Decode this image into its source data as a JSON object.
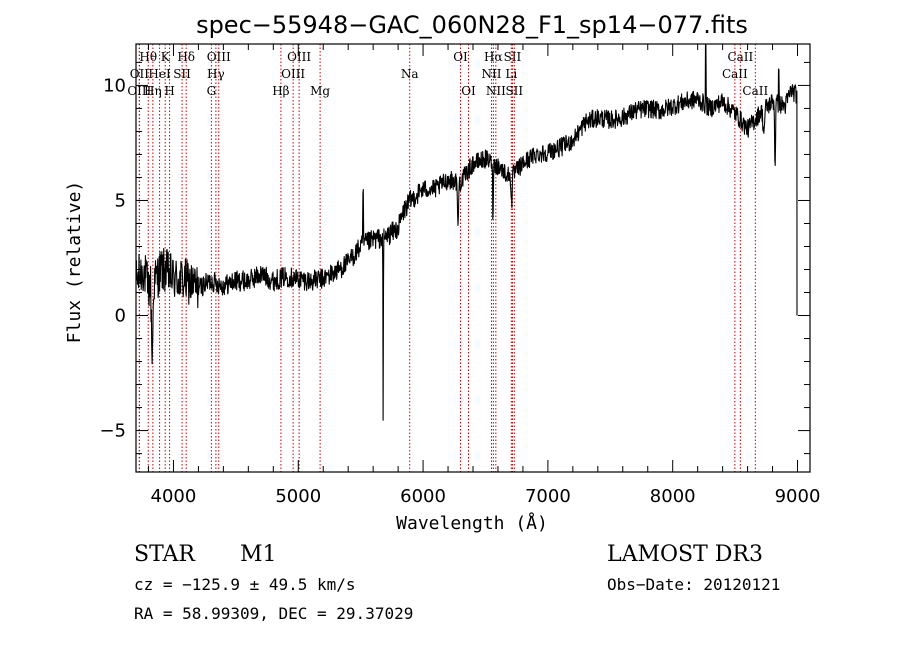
{
  "chart_data": {
    "type": "line",
    "title": "spec−55948−GAC_060N28_F1_sp14−077.fits",
    "xlabel": "Wavelength (Å)",
    "ylabel": "Flux (relative)",
    "xlim": [
      3700,
      9100
    ],
    "ylim": [
      -6.8,
      11.8
    ],
    "x_ticks": [
      {
        "value": 4000,
        "label": "4000"
      },
      {
        "value": 5000,
        "label": "5000"
      },
      {
        "value": 6000,
        "label": "6000"
      },
      {
        "value": 7000,
        "label": "7000"
      },
      {
        "value": 8000,
        "label": "8000"
      },
      {
        "value": 9000,
        "label": "9000"
      }
    ],
    "y_ticks": [
      {
        "value": -5,
        "label": "−5"
      },
      {
        "value": 0,
        "label": "0"
      },
      {
        "value": 5,
        "label": "5"
      },
      {
        "value": 10,
        "label": "10"
      }
    ],
    "spectrum_anchors": [
      [
        3700,
        1.5
      ],
      [
        3760,
        2.0
      ],
      [
        3800,
        1.2
      ],
      [
        3850,
        1.5
      ],
      [
        3900,
        2.0
      ],
      [
        3950,
        1.9
      ],
      [
        4000,
        1.6
      ],
      [
        4100,
        1.5
      ],
      [
        4200,
        1.2
      ],
      [
        4300,
        1.5
      ],
      [
        4400,
        1.3
      ],
      [
        4500,
        1.5
      ],
      [
        4600,
        1.5
      ],
      [
        4700,
        1.8
      ],
      [
        4800,
        1.5
      ],
      [
        4900,
        1.7
      ],
      [
        5000,
        1.6
      ],
      [
        5100,
        1.5
      ],
      [
        5200,
        1.6
      ],
      [
        5300,
        1.9
      ],
      [
        5400,
        2.3
      ],
      [
        5500,
        3.0
      ],
      [
        5600,
        3.3
      ],
      [
        5700,
        3.4
      ],
      [
        5800,
        3.8
      ],
      [
        5850,
        4.6
      ],
      [
        5900,
        5.0
      ],
      [
        6000,
        5.5
      ],
      [
        6100,
        5.5
      ],
      [
        6200,
        5.9
      ],
      [
        6300,
        5.8
      ],
      [
        6400,
        6.6
      ],
      [
        6500,
        6.8
      ],
      [
        6600,
        6.5
      ],
      [
        6700,
        6.0
      ],
      [
        6800,
        6.6
      ],
      [
        6900,
        7.0
      ],
      [
        7000,
        7.1
      ],
      [
        7100,
        7.3
      ],
      [
        7200,
        7.6
      ],
      [
        7300,
        8.4
      ],
      [
        7400,
        8.6
      ],
      [
        7500,
        8.5
      ],
      [
        7600,
        8.6
      ],
      [
        7700,
        8.9
      ],
      [
        7800,
        9.0
      ],
      [
        7900,
        8.9
      ],
      [
        8000,
        9.1
      ],
      [
        8100,
        9.3
      ],
      [
        8200,
        9.4
      ],
      [
        8300,
        9.0
      ],
      [
        8400,
        9.3
      ],
      [
        8500,
        8.8
      ],
      [
        8600,
        8.1
      ],
      [
        8700,
        8.8
      ],
      [
        8800,
        9.3
      ],
      [
        8900,
        9.1
      ],
      [
        8950,
        9.8
      ],
      [
        8990,
        9.6
      ]
    ],
    "spectrum_features": [
      {
        "x": 3830,
        "depth": 3.4,
        "width": 12
      },
      {
        "x": 5680,
        "depth": 8.0,
        "width": 3
      },
      {
        "x": 6280,
        "depth": 2.2,
        "width": 8
      },
      {
        "x": 6560,
        "depth": 2.5,
        "width": 5
      },
      {
        "x": 6710,
        "depth": 1.3,
        "width": 8
      },
      {
        "x": 8730,
        "depth": 1.0,
        "width": 14
      },
      {
        "x": 8820,
        "depth": 3.2,
        "width": 6
      }
    ],
    "spectrum_spikes": [
      {
        "x": 5520,
        "height": 2.3
      },
      {
        "x": 8265,
        "height": 3.5
      },
      {
        "x": 8850,
        "height": 1.8
      }
    ],
    "spectrum_end": {
      "x": 8996,
      "drop_to": 0.0
    },
    "noise_amplitude": 0.45,
    "line_markers": [
      {
        "x": 3798,
        "label": "Hθ",
        "row": 0
      },
      {
        "x": 3727,
        "label": "OII",
        "row": 1
      },
      {
        "x": 3727,
        "label": "OIII",
        "row": 2
      },
      {
        "x": 3835,
        "label": "Hη",
        "row": 2
      },
      {
        "x": 3889,
        "label": "HeI",
        "row": 1
      },
      {
        "x": 3934,
        "label": "K",
        "row": 0
      },
      {
        "x": 3969,
        "label": "H",
        "row": 2
      },
      {
        "x": 4069,
        "label": "SII",
        "row": 1
      },
      {
        "x": 4102,
        "label": "Hδ",
        "row": 0
      },
      {
        "x": 4304,
        "label": "G",
        "row": 2
      },
      {
        "x": 4340,
        "label": "Hγ",
        "row": 1
      },
      {
        "x": 4363,
        "label": "OIII",
        "row": 0
      },
      {
        "x": 4861,
        "label": "Hβ",
        "row": 2
      },
      {
        "x": 4959,
        "label": "OIII",
        "row": 1
      },
      {
        "x": 5007,
        "label": "OIII",
        "row": 0
      },
      {
        "x": 5175,
        "label": "Mg",
        "row": 2
      },
      {
        "x": 5893,
        "label": "Na",
        "row": 1
      },
      {
        "x": 6300,
        "label": "OI",
        "row": 0
      },
      {
        "x": 6364,
        "label": "OI",
        "row": 2
      },
      {
        "x": 6548,
        "label": "NII",
        "row": 1
      },
      {
        "x": 6563,
        "label": "Hα",
        "row": 0
      },
      {
        "x": 6583,
        "label": "NII",
        "row": 2
      },
      {
        "x": 6707,
        "label": "Li",
        "row": 1
      },
      {
        "x": 6716,
        "label": "SII",
        "row": 0
      },
      {
        "x": 6731,
        "label": "SII",
        "row": 2
      },
      {
        "x": 8498,
        "label": "CaII",
        "row": 1
      },
      {
        "x": 8542,
        "label": "CaII",
        "row": 0
      },
      {
        "x": 8662,
        "label": "CaII",
        "row": 2
      }
    ],
    "colors": {
      "spectrum": "#000000",
      "axes": "#000000",
      "line_markers": "#cc0000"
    }
  },
  "info": {
    "object_class": "STAR",
    "subclass": "M1",
    "survey": "LAMOST DR3",
    "redshift": "cz = −125.9 ± 49.5 km/s",
    "obs_date": "Obs−Date: 20120121",
    "coords": "RA =  58.99309, DEC =  29.37029"
  }
}
